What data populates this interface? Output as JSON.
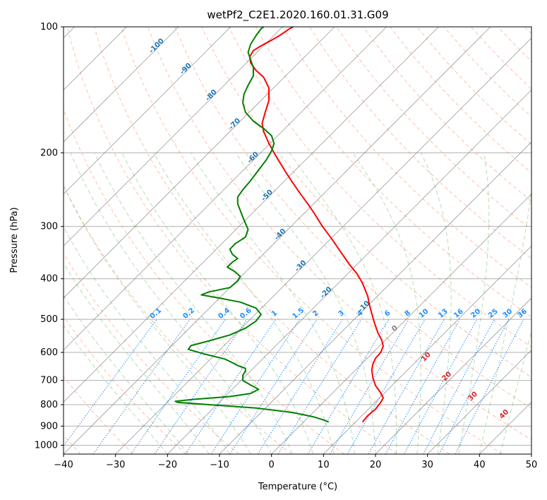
{
  "chart_data": {
    "type": "line",
    "subtype": "skew-t log-p diagram",
    "title": "wetPf2_C2E1.2020.160.01.31.G09",
    "xlabel": "Temperature (°C)",
    "ylabel": "Pressure (hPa)",
    "xlim": [
      -40,
      50
    ],
    "ylim": [
      1050,
      100
    ],
    "y_scale": "log",
    "grid": true,
    "x_ticks": [
      "−40",
      "−30",
      "−20",
      "−10",
      "0",
      "10",
      "20",
      "30",
      "40",
      "50"
    ],
    "y_ticks": [
      "100",
      "200",
      "300",
      "400",
      "500",
      "600",
      "700",
      "800",
      "900",
      "1000"
    ],
    "series": [
      {
        "color": "#ff0000",
        "points": [
          [
            17.5,
            880
          ],
          [
            18.5,
            850
          ],
          [
            20,
            820
          ],
          [
            21,
            790
          ],
          [
            21.5,
            770
          ],
          [
            21,
            750
          ],
          [
            20,
            720
          ],
          [
            19.5,
            690
          ],
          [
            19.3,
            660
          ],
          [
            19.5,
            640
          ],
          [
            20,
            620
          ],
          [
            21,
            600
          ],
          [
            21.5,
            580
          ],
          [
            21.2,
            560
          ],
          [
            20.5,
            540
          ],
          [
            19.8,
            510
          ],
          [
            19.3,
            485
          ],
          [
            18.8,
            460
          ],
          [
            18.5,
            440
          ],
          [
            17.5,
            410
          ],
          [
            16.5,
            390
          ],
          [
            15,
            370
          ],
          [
            13.3,
            345
          ],
          [
            11.5,
            320
          ],
          [
            9.8,
            300
          ],
          [
            8.3,
            280
          ],
          [
            7,
            265
          ],
          [
            5.5,
            250
          ],
          [
            4,
            235
          ],
          [
            2.5,
            220
          ],
          [
            1,
            205
          ],
          [
            -0.5,
            190
          ],
          [
            -1.5,
            178
          ],
          [
            -1.8,
            170
          ],
          [
            -1.2,
            160
          ],
          [
            -0.5,
            150
          ],
          [
            -0.5,
            140
          ],
          [
            -1.5,
            132
          ],
          [
            -3,
            127
          ],
          [
            -4,
            122
          ],
          [
            -4.2,
            118
          ],
          [
            -3.5,
            114
          ],
          [
            -2,
            111
          ],
          [
            -0.2,
            108
          ],
          [
            1.5,
            105
          ],
          [
            2.5,
            103
          ],
          [
            3.5,
            101
          ],
          [
            4.2,
            100
          ]
        ]
      },
      {
        "color": "#008000",
        "points": [
          [
            11,
            880
          ],
          [
            10,
            870
          ],
          [
            8,
            855
          ],
          [
            4,
            835
          ],
          [
            -3,
            815
          ],
          [
            -12,
            800
          ],
          [
            -18,
            790
          ],
          [
            -18.5,
            785
          ],
          [
            -15,
            777
          ],
          [
            -8,
            765
          ],
          [
            -4,
            752
          ],
          [
            -2.5,
            735
          ],
          [
            -4,
            718
          ],
          [
            -5.5,
            700
          ],
          [
            -5.5,
            680
          ],
          [
            -5,
            665
          ],
          [
            -5,
            655
          ],
          [
            -6.5,
            645
          ],
          [
            -7.5,
            635
          ],
          [
            -9,
            622
          ],
          [
            -13,
            605
          ],
          [
            -16,
            590
          ],
          [
            -15.5,
            578
          ],
          [
            -12,
            563
          ],
          [
            -8,
            545
          ],
          [
            -5,
            525
          ],
          [
            -3,
            505
          ],
          [
            -2,
            487
          ],
          [
            -3,
            470
          ],
          [
            -6,
            455
          ],
          [
            -10,
            445
          ],
          [
            -13.5,
            437
          ],
          [
            -12,
            430
          ],
          [
            -8,
            420
          ],
          [
            -6.5,
            405
          ],
          [
            -6,
            395
          ],
          [
            -7,
            385
          ],
          [
            -8.5,
            375
          ],
          [
            -7.5,
            365
          ],
          [
            -6.5,
            358
          ],
          [
            -7.5,
            350
          ],
          [
            -8,
            340
          ],
          [
            -7,
            330
          ],
          [
            -5,
            318
          ],
          [
            -4.5,
            305
          ],
          [
            -5,
            295
          ],
          [
            -5.5,
            285
          ],
          [
            -6,
            275
          ],
          [
            -6.5,
            265
          ],
          [
            -6.5,
            255
          ],
          [
            -5.5,
            245
          ],
          [
            -4,
            233
          ],
          [
            -2.5,
            220
          ],
          [
            -1,
            208
          ],
          [
            0,
            198
          ],
          [
            0.5,
            190
          ],
          [
            0,
            182
          ],
          [
            -1.5,
            175
          ],
          [
            -3.5,
            168
          ],
          [
            -5,
            160
          ],
          [
            -5.5,
            152
          ],
          [
            -5.3,
            145
          ],
          [
            -4.5,
            138
          ],
          [
            -3.5,
            131
          ],
          [
            -3.5,
            125
          ],
          [
            -4,
            120
          ],
          [
            -4.5,
            115
          ],
          [
            -4,
            110
          ],
          [
            -3,
            105
          ],
          [
            -2,
            101
          ],
          [
            -1.5,
            100
          ]
        ]
      }
    ],
    "isotherm_labels": [
      "-100",
      "-90",
      "-80",
      "-70",
      "-60",
      "-50",
      "-40",
      "-30",
      "-20",
      "-10"
    ],
    "mixing_ratio_labels": [
      "0.1",
      "0.2",
      "0.4",
      "0.6",
      "1",
      "1.5",
      "2",
      "3",
      "4",
      "6",
      "8",
      "10",
      "13",
      "16",
      "20",
      "25",
      "30",
      "36"
    ],
    "moist_adiabat_labels": [
      "0",
      "10",
      "20",
      "30",
      "40"
    ],
    "colors": {
      "temperature": "#ff0000",
      "dewpoint": "#008000",
      "isotherm_label": "#1f77b4",
      "mixing_ratio": "#1e90ff",
      "moist_adiabat_label": "#d62728",
      "dry_adiabat": "#ff7f50",
      "moist_adiabat": "#2ca02c",
      "grid": "#b0b0b0",
      "isotherm": "#808080"
    }
  }
}
